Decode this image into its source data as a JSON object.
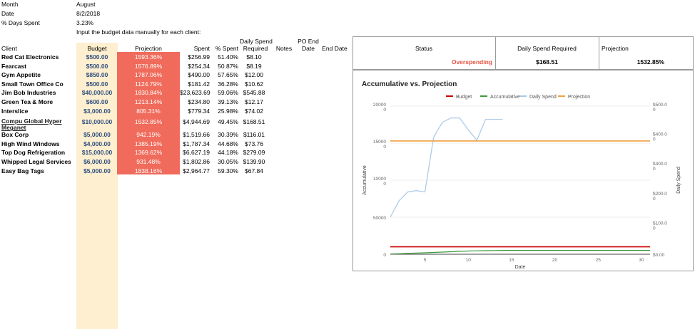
{
  "meta": {
    "month_label": "Month",
    "month_value": "August",
    "date_label": "Date",
    "date_value": "8/2/2018",
    "days_label": "% Days Spent",
    "days_value": "3.23%",
    "instruction": "Input the budget data manually for each client:"
  },
  "headers": {
    "client": "Client",
    "budget": "Budget",
    "projection": "Projection",
    "spent": "Spent",
    "pct_spent": "% Spent",
    "daily_line1": "Daily Spend",
    "daily_line2": "Required",
    "notes": "Notes",
    "po_line1": "PO End",
    "po_line2": "Date",
    "end_date": "End Date"
  },
  "rows": [
    {
      "client": "Red Cat Electronics",
      "budget": "$500.00",
      "projection": "1593.36%",
      "spent": "$256.99",
      "pct": "51.40%",
      "daily": "$8.10"
    },
    {
      "client": "Fearcast",
      "budget": "$500.00",
      "projection": "1576.89%",
      "spent": "$254.34",
      "pct": "50.87%",
      "daily": "$8.19"
    },
    {
      "client": "Gym Appetite",
      "budget": "$850.00",
      "projection": "1787.06%",
      "spent": "$490.00",
      "pct": "57.65%",
      "daily": "$12.00"
    },
    {
      "client": "Small Town Office Co",
      "budget": "$500.00",
      "projection": "1124.79%",
      "spent": "$181.42",
      "pct": "36.28%",
      "daily": "$10.62"
    },
    {
      "client": "Jim Bob Industries",
      "budget": "$40,000.00",
      "projection": "1830.84%",
      "spent": "$23,623.69",
      "pct": "59.06%",
      "daily": "$545.88"
    },
    {
      "client": "Green Tea & More",
      "budget": "$600.00",
      "projection": "1213.14%",
      "spent": "$234.80",
      "pct": "39.13%",
      "daily": "$12.17"
    },
    {
      "client": "Interslice",
      "budget": "$3,000.00",
      "projection": "805.31%",
      "spent": "$779.34",
      "pct": "25.98%",
      "daily": "$74.02"
    },
    {
      "client": "Compu Global Hyper Meganet",
      "budget": "$10,000.00",
      "projection": "1532.85%",
      "spent": "$4,944.69",
      "pct": "49.45%",
      "daily": "$168.51"
    },
    {
      "client": "Box Corp",
      "budget": "$5,000.00",
      "projection": "942.19%",
      "spent": "$1,519.66",
      "pct": "30.39%",
      "daily": "$116.01"
    },
    {
      "client": "High Wind Windows",
      "budget": "$4,000.00",
      "projection": "1385.19%",
      "spent": "$1,787.34",
      "pct": "44.68%",
      "daily": "$73.76"
    },
    {
      "client": "Top Dog Refrigeration",
      "budget": "$15,000.00",
      "projection": "1369.62%",
      "spent": "$6,627.19",
      "pct": "44.18%",
      "daily": "$279.09"
    },
    {
      "client": "Whipped Legal Services",
      "budget": "$6,000.00",
      "projection": "931.48%",
      "spent": "$1,802.86",
      "pct": "30.05%",
      "daily": "$139.90"
    },
    {
      "client": "Easy Bag Tags",
      "budget": "$5,000.00",
      "projection": "1838.16%",
      "spent": "$2,964.77",
      "pct": "59.30%",
      "daily": "$67.84"
    }
  ],
  "summary": {
    "status_label": "Status",
    "status_value": "Overspending",
    "daily_label": "Daily Spend Required",
    "daily_value": "$168.51",
    "projection_label": "Projection",
    "projection_value": "1532.85%"
  },
  "colors": {
    "projection_fill": "#f06b5b",
    "budget_fill": "#fdefcf",
    "budget_line": "#cc0000",
    "accumulative_line": "#3c9a3c",
    "daily_line": "#a8c8e8",
    "projection_line": "#f0a040",
    "status_text": "#e8523f"
  },
  "chart_data": {
    "type": "line",
    "title": "Accumulative vs. Projection",
    "xlabel": "Date",
    "ylabel_left": "Accumulative",
    "ylabel_right": "Daily Spend",
    "x_ticks": [
      5,
      10,
      15,
      20,
      25,
      30
    ],
    "y_left_ticks": [
      "0",
      "50000",
      "10000\n0",
      "15000\n0",
      "20000\n0"
    ],
    "y_right_ticks": [
      "$0.00",
      "$100.0\n0",
      "$200.0\n0",
      "$300.0\n0",
      "$400.0\n0",
      "$500.0\n0"
    ],
    "xlim": [
      1,
      31
    ],
    "ylim_left": [
      0,
      200000
    ],
    "ylim_right": [
      0,
      500
    ],
    "series": [
      {
        "name": "Budget",
        "axis": "left",
        "x": [
          1,
          31
        ],
        "y": [
          10000,
          10000
        ]
      },
      {
        "name": "Accumulative",
        "axis": "left",
        "x": [
          1,
          2,
          3,
          4,
          5,
          6,
          7,
          8,
          9,
          10,
          11,
          12,
          13,
          14,
          15,
          16,
          17,
          18,
          19,
          20,
          21,
          22,
          23,
          24,
          25,
          26,
          27,
          28,
          29,
          30,
          31
        ],
        "y": [
          300,
          700,
          1100,
          1500,
          1900,
          2400,
          2900,
          3400,
          3900,
          4300,
          4600,
          4800,
          5000,
          5200,
          5200,
          5200,
          5200,
          5200,
          5200,
          5200,
          5200,
          5200,
          5200,
          5200,
          5200,
          5200,
          5200,
          5200,
          5200,
          5200,
          5200
        ]
      },
      {
        "name": "Daily Spend",
        "axis": "right",
        "x": [
          1,
          2,
          3,
          4,
          5,
          6,
          7,
          8,
          9,
          10,
          11,
          12,
          13,
          14
        ],
        "y": [
          125,
          180,
          210,
          215,
          210,
          395,
          445,
          460,
          460,
          420,
          385,
          455,
          455,
          455
        ]
      },
      {
        "name": "Projection",
        "axis": "left",
        "x": [
          1,
          31
        ],
        "y": [
          153000,
          153000
        ]
      }
    ]
  }
}
